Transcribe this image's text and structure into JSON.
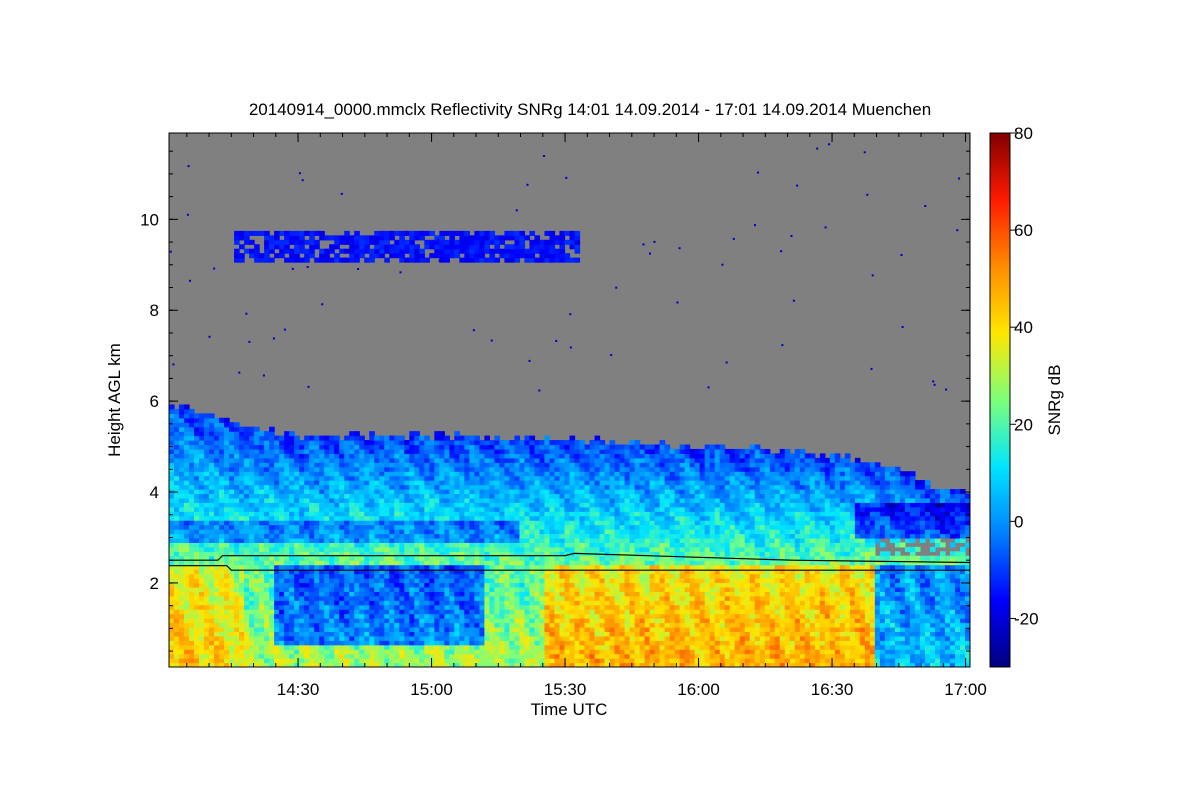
{
  "chart_data": {
    "type": "heatmap",
    "title": "20140914_0000.mmclx Reflectivity SNRg   14:01 14.09.2014 - 17:01 14.09.2014 Muenchen",
    "xlabel": "Time UTC",
    "ylabel": "Height AGL km",
    "colorbar_label": "SNRg dB",
    "x_range_minutes_utc": [
      841,
      1021
    ],
    "y_range_km": [
      0.15,
      11.9
    ],
    "x_ticks": [
      {
        "minute": 870,
        "label": "14:30"
      },
      {
        "minute": 900,
        "label": "15:00"
      },
      {
        "minute": 930,
        "label": "15:30"
      },
      {
        "minute": 960,
        "label": "16:00"
      },
      {
        "minute": 990,
        "label": "16:30"
      },
      {
        "minute": 1020,
        "label": "17:00"
      }
    ],
    "y_ticks": [
      {
        "value": 2,
        "label": "2"
      },
      {
        "value": 4,
        "label": "4"
      },
      {
        "value": 6,
        "label": "6"
      },
      {
        "value": 8,
        "label": "8"
      },
      {
        "value": 10,
        "label": "10"
      }
    ],
    "colorbar_range_db": [
      -30,
      80
    ],
    "colorbar_ticks": [
      {
        "value": -20,
        "label": "-20"
      },
      {
        "value": 0,
        "label": "0"
      },
      {
        "value": 20,
        "label": "20"
      },
      {
        "value": 40,
        "label": "40"
      },
      {
        "value": 60,
        "label": "60"
      },
      {
        "value": 80,
        "label": "80"
      }
    ],
    "no_signal_color": "#808080",
    "colormap": [
      "#00007f",
      "#0000ff",
      "#0080ff",
      "#00e5ff",
      "#7dff7a",
      "#ffe600",
      "#ff8c00",
      "#ff1a00",
      "#800000"
    ],
    "cloud_top_km": [
      [
        841,
        5.95
      ],
      [
        850,
        5.7
      ],
      [
        860,
        5.45
      ],
      [
        870,
        5.25
      ],
      [
        885,
        5.25
      ],
      [
        900,
        5.25
      ],
      [
        915,
        5.2
      ],
      [
        930,
        5.15
      ],
      [
        945,
        5.1
      ],
      [
        960,
        5.0
      ],
      [
        975,
        4.95
      ],
      [
        985,
        4.85
      ],
      [
        995,
        4.75
      ],
      [
        1005,
        4.5
      ],
      [
        1012,
        4.15
      ],
      [
        1021,
        4.0
      ]
    ],
    "upper_cloud": {
      "start_minute": 856,
      "end_minute": 933,
      "bottom_km": 9.05,
      "top_km": 9.7,
      "snr_db": -15
    },
    "melting_layer_lines_km": {
      "upper": [
        [
          841,
          2.5
        ],
        [
          852,
          2.5
        ],
        [
          853,
          2.6
        ],
        [
          930,
          2.6
        ],
        [
          932,
          2.65
        ],
        [
          981,
          2.5
        ],
        [
          1021,
          2.45
        ]
      ],
      "lower": [
        [
          841,
          2.38
        ],
        [
          854,
          2.38
        ],
        [
          855,
          2.28
        ],
        [
          1021,
          2.28
        ]
      ]
    },
    "snr_profile_description": "Stratiform rain below ~2.5 km (up to ~60 dB), ice cloud 2.5-6 km (-20 to 30 dB)"
  }
}
